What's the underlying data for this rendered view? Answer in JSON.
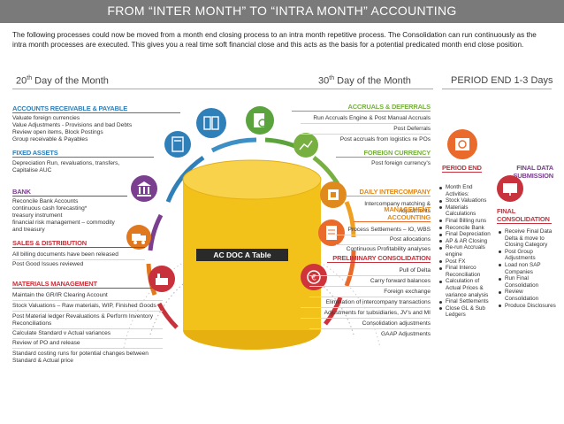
{
  "header": {
    "title": "FROM “INTER MONTH” TO “INTRA MONTH” ACCOUNTING"
  },
  "intro": "The following processes could now be moved from a month end closing process to an intra month repetitive process. The Consolidation can run continuously as the intra month processes are executed. This gives you a real time soft financial close and this acts as the basis for a potential predicated month end close position.",
  "phases": {
    "p1_num": "20",
    "p1_sup": "th",
    "p1_text": " Day of the Month",
    "p2_num": "30",
    "p2_sup": "th",
    "p2_text": " Day of the Month",
    "p3": "PERIOD END 1-3 Days"
  },
  "center": {
    "label": "AC DOC A Table"
  },
  "left_sections": {
    "ar_ap": {
      "title": "ACCOUNTS RECEIVABLE & PAYABLE",
      "items": [
        "Valuate foreign currencies",
        "Value Adjustments - Provisions and bad Debts",
        "Review open items, Block Postings",
        "Group receivable & Payables"
      ]
    },
    "fixed_assets": {
      "title": "FIXED ASSETS",
      "items": [
        "Depreciation Run, revaluations, transfers,",
        "Capitalise AUC"
      ]
    },
    "bank": {
      "title": "BANK",
      "items": [
        "Reconcile Bank Accounts",
        "continuous cash forecasting*",
        "treasury instrument",
        "financial risk management – commodity",
        "and treasury"
      ]
    },
    "sales": {
      "title": "SALES & DISTRIBUTION",
      "items": [
        "All billing documents have been released",
        "Post Good Issues reviewed"
      ]
    },
    "materials": {
      "title": "MATERIALS MANAGEMENT",
      "items": [
        "Maintain the GR/IR Clearing Account",
        "Stock Valuations – Raw materials, WIP, Finished Goods",
        "Post Material ledger Revaluations & Perform Inventory",
        "Reconciliations",
        "Calculate Standard v Actual variances",
        "Review of PO and release",
        "Standard costing runs for potential changes between",
        "Standard & Actual price"
      ]
    }
  },
  "right_sections": {
    "accruals": {
      "title": "ACCRUALS & DEFERRALS",
      "items": [
        "Run Accruals Engine & Post Manual Accruals",
        "Post Deferrals",
        "Post accruals from logistics re POs"
      ]
    },
    "foreign": {
      "title": "FOREIGN CURRENCY",
      "items": [
        "Post foreign currency's"
      ]
    },
    "intercompany": {
      "title": "DAILY INTERCOMPANY",
      "items": [
        "Intercompany matching &",
        "Adjustments"
      ]
    },
    "management": {
      "title_1": "MANAGEMENT",
      "title_2": "ACCOUNTING",
      "items": [
        "Process Settlements – IO, WBS",
        "Post allocations",
        "Continuous Profitability analyses"
      ]
    },
    "preliminary": {
      "title": "PRELIMINARY CONSOLIDATION",
      "items": [
        "Pull of Delta",
        "Carry forward balances",
        "Foreign exchange",
        "Elimination of intercompany transactions",
        "Adjustments for subsidiaries, JV's and MI",
        "Consolidation adjustments",
        "GAAP Adjustments"
      ]
    }
  },
  "period_end": {
    "title": "PERIOD END",
    "items": [
      "Month End Activities:",
      "Stock Valuations",
      "Materials Calculations",
      "Final Billing runs",
      "Reconcile Bank",
      "Final Depreciation",
      "AP & AR Closing",
      "Re-run Accruals engine",
      "Post FX",
      "Final Interco Reconciliation",
      "Calculation of Actual Prices & variance analysis",
      "Final Settlements",
      "Close GL & Sub Ledgers"
    ]
  },
  "final_data": {
    "title_1": "FINAL DATA",
    "title_2": "SUBMISSION"
  },
  "final_consolidation": {
    "title_1": "FINAL",
    "title_2": "CONSOLIDATION",
    "items": [
      "Receive Final Data Delta & move to Closing Category",
      "Post Group Adjustments",
      "Load non SAP Companies",
      "Run Final Consolidation",
      "Review Consolidation",
      "Produce Disclosures"
    ]
  },
  "colors": {
    "banner": "#7a7a7a",
    "blue": "#2f7fb8",
    "green": "#77b041",
    "purple": "#7b3f8f",
    "red": "#c8323c",
    "orange": "#e08a1e",
    "cylinder": "#f2c21b"
  }
}
